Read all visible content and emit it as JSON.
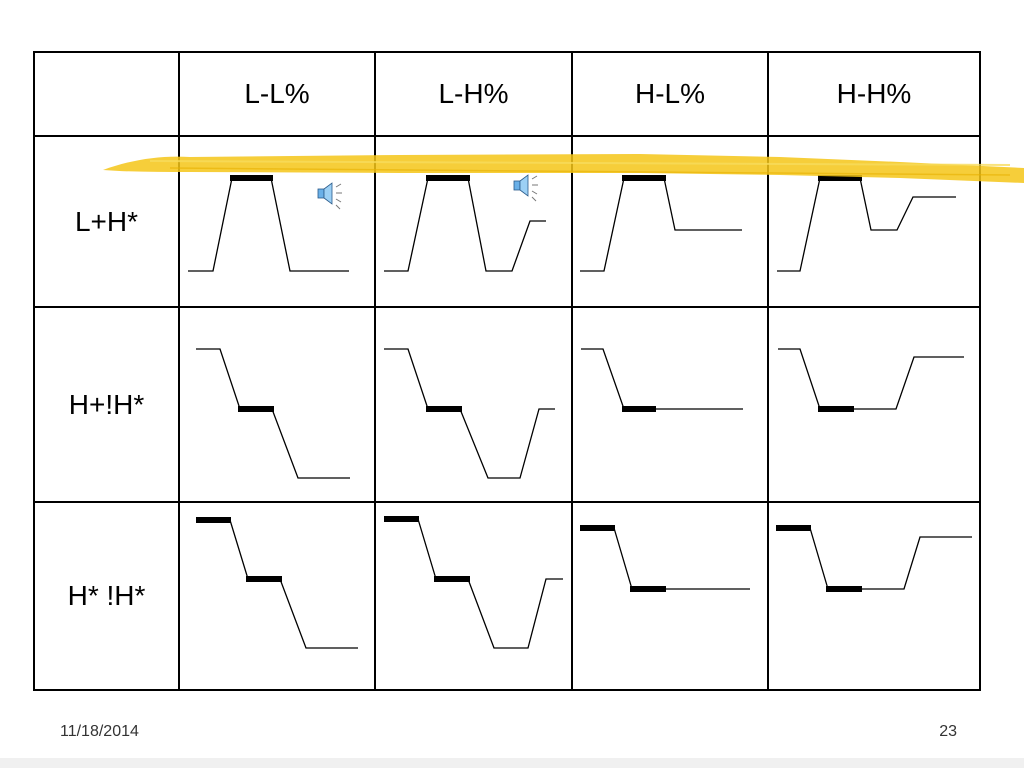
{
  "table": {
    "header": {
      "empty": "",
      "columns": [
        "L-L%",
        "L-H%",
        "H-L%",
        "H-H%"
      ]
    },
    "rows": [
      {
        "label": "L+H*"
      },
      {
        "label": "H+!H*"
      },
      {
        "label": "H* !H*"
      }
    ]
  },
  "icons": [
    "speaker-icon",
    "speaker-icon"
  ],
  "highlight_color": "#f5c518",
  "footer": {
    "date": "11/18/2014",
    "page": "23"
  }
}
